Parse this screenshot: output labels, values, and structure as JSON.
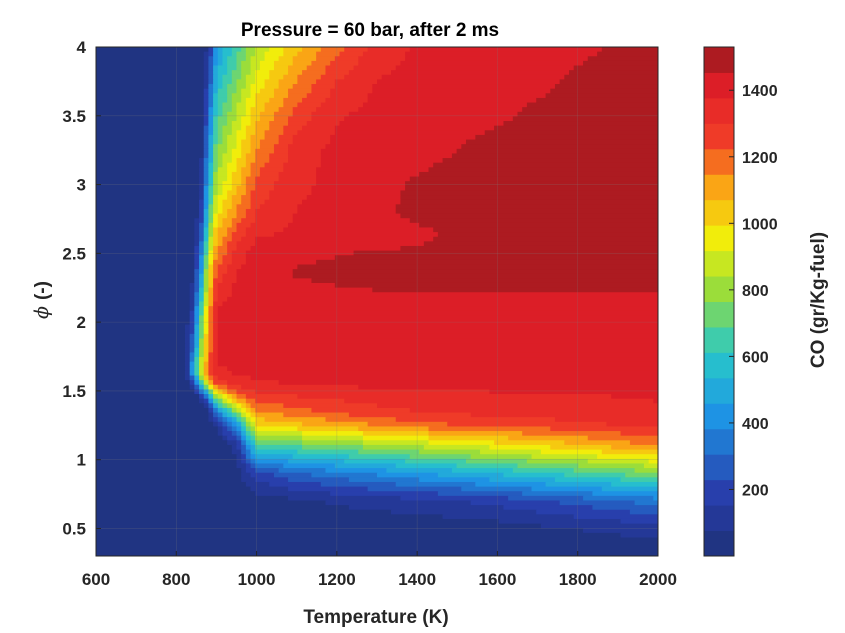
{
  "chart_data": {
    "type": "heatmap",
    "title": "Pressure = 60 bar, after 2 ms",
    "xlabel": "Temperature (K)",
    "ylabel_symbol": "ϕ",
    "ylabel_unit": "(-)",
    "colorbar_label": "CO (gr/Kg-fuel)",
    "xlim": [
      600,
      2000
    ],
    "ylim": [
      0.3,
      4.0
    ],
    "x_ticks": [
      600,
      800,
      1000,
      1200,
      1400,
      1600,
      1800,
      2000
    ],
    "y_ticks": [
      0.5,
      1,
      1.5,
      2,
      2.5,
      3,
      3.5,
      4
    ],
    "y_tick_labels": [
      "0.5",
      "1",
      "1.5",
      "2",
      "2.5",
      "3",
      "3.5",
      "4"
    ],
    "colorbar_range": [
      0,
      1530
    ],
    "colorbar_ticks": [
      200,
      400,
      600,
      800,
      1000,
      1200,
      1400
    ],
    "colormap": "jet",
    "grid": true,
    "x": [
      600,
      700,
      800,
      820,
      840,
      860,
      880,
      900,
      950,
      1000,
      1100,
      1200,
      1300,
      1400,
      1500,
      1600,
      1700,
      1800,
      1900,
      2000
    ],
    "y": [
      0.3,
      0.5,
      0.7,
      0.9,
      1.1,
      1.25,
      1.35,
      1.45,
      1.55,
      1.62,
      1.7,
      1.8,
      1.9,
      2.0,
      2.1,
      2.2,
      2.35,
      2.5,
      2.65,
      2.8,
      3.0,
      3.25,
      3.5,
      3.75,
      4.0
    ],
    "z": [
      [
        0,
        0,
        0,
        0,
        0,
        0,
        0,
        0,
        0,
        0,
        0,
        0,
        0,
        0,
        0,
        0,
        0,
        0,
        0,
        0
      ],
      [
        0,
        0,
        0,
        0,
        0,
        0,
        0,
        0,
        0,
        0,
        5,
        10,
        15,
        20,
        30,
        40,
        60,
        80,
        100,
        120
      ],
      [
        0,
        0,
        0,
        0,
        0,
        0,
        0,
        0,
        0,
        30,
        60,
        90,
        110,
        130,
        150,
        180,
        220,
        260,
        300,
        350
      ],
      [
        0,
        0,
        0,
        0,
        0,
        0,
        0,
        0,
        40,
        200,
        300,
        350,
        400,
        450,
        500,
        550,
        600,
        650,
        700,
        750
      ],
      [
        0,
        0,
        0,
        0,
        0,
        0,
        0,
        0,
        100,
        650,
        700,
        750,
        800,
        850,
        900,
        950,
        1000,
        1050,
        1100,
        1150
      ],
      [
        0,
        0,
        0,
        0,
        0,
        0,
        0,
        100,
        400,
        1000,
        1050,
        1100,
        1150,
        1200,
        1220,
        1240,
        1260,
        1280,
        1300,
        1320
      ],
      [
        0,
        0,
        0,
        0,
        0,
        0,
        60,
        350,
        800,
        1150,
        1200,
        1250,
        1280,
        1300,
        1320,
        1330,
        1340,
        1350,
        1360,
        1370
      ],
      [
        0,
        0,
        0,
        0,
        0,
        80,
        350,
        800,
        1150,
        1260,
        1290,
        1310,
        1330,
        1345,
        1355,
        1360,
        1365,
        1370,
        1375,
        1380
      ],
      [
        0,
        0,
        0,
        0,
        150,
        500,
        1000,
        1250,
        1330,
        1360,
        1380,
        1390,
        1395,
        1400,
        1400,
        1400,
        1400,
        1400,
        1400,
        1400
      ],
      [
        0,
        0,
        0,
        0,
        400,
        850,
        1180,
        1350,
        1380,
        1400,
        1410,
        1410,
        1410,
        1410,
        1410,
        1410,
        1410,
        1410,
        1410,
        1410
      ],
      [
        0,
        0,
        0,
        0,
        400,
        850,
        1180,
        1380,
        1400,
        1410,
        1420,
        1420,
        1420,
        1420,
        1420,
        1420,
        1420,
        1420,
        1420,
        1420
      ],
      [
        0,
        0,
        0,
        0,
        300,
        750,
        1150,
        1390,
        1410,
        1420,
        1425,
        1425,
        1425,
        1425,
        1425,
        1425,
        1425,
        1425,
        1425,
        1425
      ],
      [
        0,
        0,
        0,
        0,
        250,
        700,
        1130,
        1400,
        1415,
        1425,
        1430,
        1430,
        1430,
        1430,
        1430,
        1430,
        1430,
        1430,
        1430,
        1430
      ],
      [
        0,
        0,
        0,
        0,
        200,
        650,
        1100,
        1400,
        1420,
        1430,
        1430,
        1430,
        1430,
        1430,
        1430,
        1430,
        1430,
        1430,
        1430,
        1430
      ],
      [
        0,
        0,
        0,
        0,
        150,
        600,
        1070,
        1380,
        1410,
        1420,
        1430,
        1430,
        1430,
        1430,
        1430,
        1430,
        1430,
        1430,
        1430,
        1430
      ],
      [
        0,
        0,
        0,
        0,
        100,
        500,
        1000,
        1320,
        1400,
        1420,
        1430,
        1440,
        1450,
        1450,
        1450,
        1450,
        1450,
        1450,
        1450,
        1450
      ],
      [
        0,
        0,
        0,
        0,
        60,
        400,
        950,
        1250,
        1380,
        1430,
        1460,
        1470,
        1470,
        1470,
        1470,
        1470,
        1470,
        1470,
        1470,
        1470
      ],
      [
        0,
        0,
        0,
        0,
        20,
        300,
        850,
        1150,
        1330,
        1420,
        1440,
        1450,
        1460,
        1470,
        1480,
        1490,
        1500,
        1510,
        1520,
        1520
      ],
      [
        0,
        0,
        0,
        0,
        0,
        200,
        720,
        1050,
        1250,
        1360,
        1390,
        1400,
        1410,
        1420,
        1480,
        1500,
        1510,
        1520,
        1520,
        1520
      ],
      [
        0,
        0,
        0,
        0,
        0,
        120,
        620,
        950,
        1150,
        1300,
        1380,
        1400,
        1410,
        1500,
        1510,
        1520,
        1520,
        1520,
        1520,
        1520
      ],
      [
        0,
        0,
        0,
        0,
        0,
        60,
        500,
        850,
        1050,
        1250,
        1360,
        1400,
        1410,
        1470,
        1510,
        1520,
        1520,
        1520,
        1520,
        1520
      ],
      [
        0,
        0,
        0,
        0,
        0,
        20,
        400,
        750,
        950,
        1150,
        1340,
        1400,
        1405,
        1410,
        1450,
        1500,
        1520,
        1520,
        1520,
        1520
      ],
      [
        0,
        0,
        0,
        0,
        0,
        0,
        300,
        650,
        850,
        1050,
        1260,
        1370,
        1400,
        1410,
        1420,
        1430,
        1480,
        1510,
        1520,
        1520
      ],
      [
        0,
        0,
        0,
        0,
        0,
        0,
        200,
        550,
        750,
        950,
        1150,
        1300,
        1380,
        1400,
        1410,
        1420,
        1420,
        1480,
        1510,
        1520
      ],
      [
        0,
        0,
        0,
        0,
        0,
        0,
        100,
        450,
        650,
        850,
        1050,
        1200,
        1330,
        1390,
        1400,
        1410,
        1410,
        1420,
        1470,
        1500
      ]
    ]
  }
}
